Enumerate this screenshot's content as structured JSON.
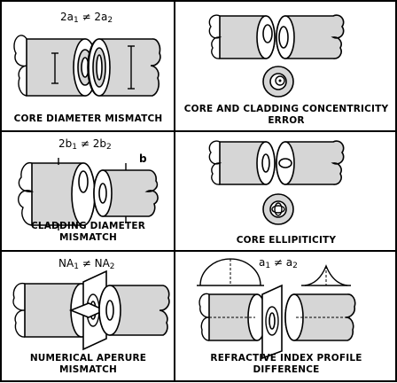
{
  "panels": [
    {
      "id": "core-diameter",
      "caption": "CORE DIAMETER MISMATCH",
      "formula": {
        "lhs": "2a",
        "lsub": "1",
        "op": " ≠ ",
        "rhs": "2a",
        "rsub": "2"
      }
    },
    {
      "id": "concentricity",
      "caption_line1": "CORE AND CLADDING CONCENTRICITY",
      "caption_line2": "ERROR"
    },
    {
      "id": "cladding-diameter",
      "caption_line1": "CLADDING DIAMETER",
      "caption_line2": "MISMATCH",
      "formula": {
        "lhs": "2b",
        "lsub": "1",
        "op": " ≠ ",
        "rhs": "2b",
        "rsub": "2"
      },
      "label": "b"
    },
    {
      "id": "ellipticity",
      "caption": "CORE ELLIPITICITY"
    },
    {
      "id": "numerical-aperture",
      "caption_line1": "NUMERICAL APERURE",
      "caption_line2": "MISMATCH",
      "formula": {
        "lhs": "NA",
        "lsub": "1",
        "op": " ≠ ",
        "rhs": "NA",
        "rsub": "2"
      }
    },
    {
      "id": "refractive-index",
      "caption_line1": "REFRACTIVE INDEX PROFILE",
      "caption_line2": "DIFFERENCE",
      "formula": {
        "lhs": "a",
        "lsub": "1",
        "op": " ≠ ",
        "rhs": "a",
        "rsub": "2"
      }
    }
  ]
}
